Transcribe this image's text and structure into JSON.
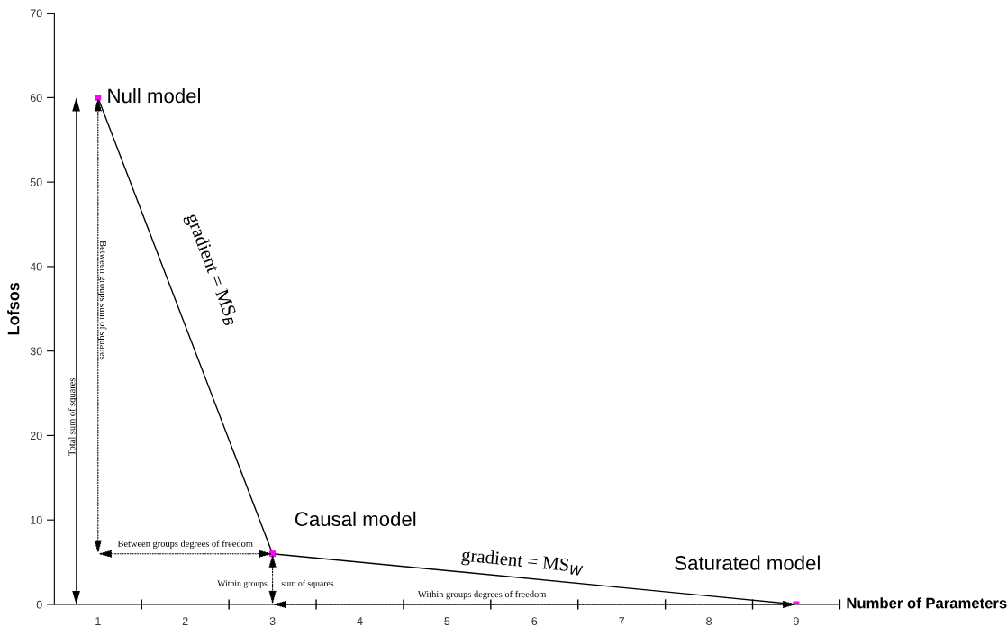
{
  "chart_data": {
    "type": "line",
    "xlabel": "Number of Parameters",
    "ylabel": "Lofsos",
    "x": [
      1,
      3,
      9
    ],
    "series": [
      {
        "color": "#000000",
        "colors": [
          "#ff00ff",
          "#ff00ff",
          "#ff00ff"
        ],
        "values": [
          60,
          6,
          0
        ]
      }
    ],
    "marker": "square",
    "line_style": "solid",
    "grid": false,
    "legend": false,
    "xlim": [
      0.5,
      9.5
    ],
    "ylim": [
      0,
      70
    ],
    "xticks": [
      1,
      2,
      3,
      4,
      5,
      6,
      7,
      8,
      9,
      {
        "value": 1.5,
        "label": null
      },
      {
        "value": 2.5,
        "label": null
      },
      {
        "value": 3.5,
        "label": null
      },
      {
        "value": 4.5,
        "label": null
      },
      {
        "value": 5.5,
        "label": null
      },
      {
        "value": 6.5,
        "label": null
      },
      {
        "value": 7.5,
        "label": null
      },
      {
        "value": 8.5,
        "label": null
      },
      {
        "value": 9.5,
        "label": null
      }
    ],
    "yticks": [
      0,
      10,
      20,
      30,
      40,
      50,
      60,
      70
    ],
    "annotations": [
      "Total sum of squares",
      "Between groups sum of squares",
      "Between groups degrees of freedom",
      "Within groups",
      "sum of squares",
      "Within groups degrees of freedom",
      "gradient = MS$_{B}$",
      "gradient = MS$_{W}$",
      "Null model",
      "Causal model",
      "Saturated model"
    ]
  }
}
